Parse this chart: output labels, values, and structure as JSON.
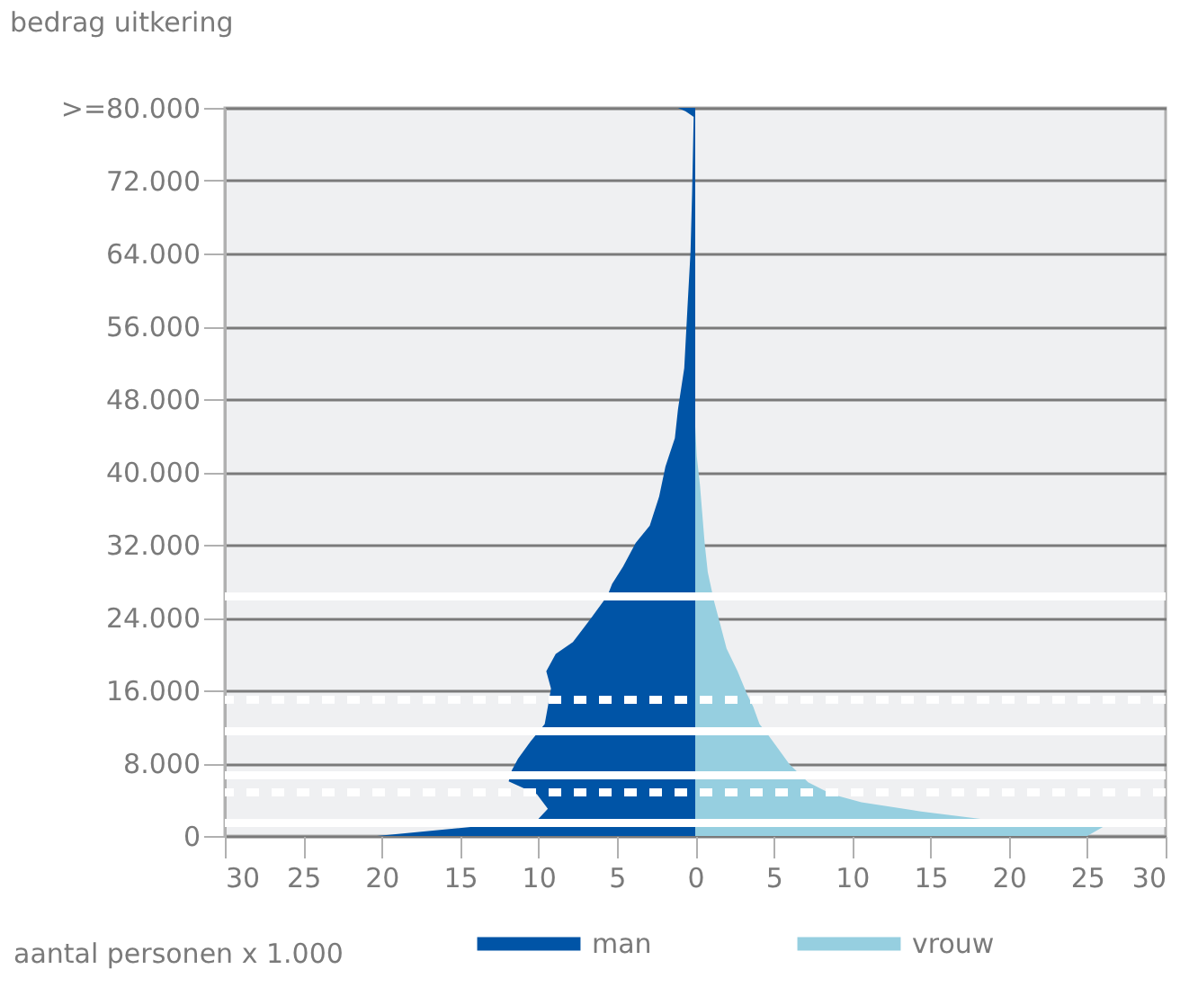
{
  "chart_data": {
    "type": "area",
    "orientation": "horizontal",
    "ylabel": "bedrag uitkering",
    "xlabel": "aantal personen x 1.000",
    "xlim": [
      -30,
      30
    ],
    "xticks": [
      {
        "value": -30,
        "label": "30"
      },
      {
        "value": -25,
        "label": "25"
      },
      {
        "value": -20,
        "label": "20"
      },
      {
        "value": -15,
        "label": "15"
      },
      {
        "value": -10,
        "label": "10"
      },
      {
        "value": -5,
        "label": "5"
      },
      0,
      5,
      10,
      15,
      20,
      25,
      30
    ],
    "ylim": [
      0,
      80000
    ],
    "yticks": [
      0,
      {
        "value": 8000,
        "label": "8.000"
      },
      {
        "value": 16000,
        "label": "16.000"
      },
      {
        "value": 24000,
        "label": "24.000"
      },
      {
        "value": 32000,
        "label": "32.000"
      },
      {
        "value": 40000,
        "label": "40.000"
      },
      {
        "value": 48000,
        "label": "48.000"
      },
      {
        "value": 56000,
        "label": "56.000"
      },
      {
        "value": 64000,
        "label": "64.000"
      },
      {
        "value": 72000,
        "label": "72.000"
      },
      {
        "value": 80000,
        "label": ">=80.000"
      }
    ],
    "grid": "y",
    "legend": "bottom",
    "series": [
      {
        "name": "man",
        "color": "#0054a6",
        "x": [
          0,
          1700,
          3000,
          4600,
          6000,
          7200,
          8500,
          10400,
          12300,
          14200,
          16200,
          18100,
          20000,
          21300,
          23800,
          26400,
          27700,
          29600,
          32200,
          34100,
          37300,
          40600,
          43700,
          46900,
          51400,
          57900,
          64200,
          70600,
          79000,
          79600,
          80000
        ],
        "values": [
          -20.3,
          -10.1,
          -9.4,
          -10.1,
          -11.9,
          -11.7,
          -11.3,
          -10.5,
          -9.6,
          -9.4,
          -9.2,
          -9.5,
          -8.9,
          -7.8,
          -6.7,
          -5.6,
          -5.3,
          -4.6,
          -3.8,
          -2.9,
          -2.3,
          -1.9,
          -1.3,
          -1.1,
          -0.7,
          -0.5,
          -0.3,
          -0.2,
          -0.1,
          -0.6,
          -1.1
        ]
      },
      {
        "name": "vrouw",
        "color": "#96cfe0",
        "x": [
          0,
          1000,
          1700,
          2700,
          3700,
          4600,
          5900,
          7900,
          9800,
          11000,
          12300,
          14200,
          15600,
          18100,
          20600,
          23200,
          25800,
          29000,
          32200,
          38600,
          41700,
          45000
        ],
        "values": [
          25,
          26,
          19,
          14.4,
          10.6,
          8.7,
          7.2,
          6.0,
          5.2,
          4.7,
          4.1,
          3.7,
          3.3,
          2.7,
          2.0,
          1.6,
          1.2,
          0.8,
          0.6,
          0.3,
          0.1,
          0
        ]
      }
    ],
    "ref_lines": [
      {
        "axis": "y",
        "value": 26300,
        "color": "#ffffff",
        "line_style": "solid"
      },
      {
        "axis": "y",
        "value": 15000,
        "color": "#ffffff",
        "line_style": "dashed"
      },
      {
        "axis": "y",
        "value": 6700,
        "color": "#ffffff",
        "line_style": "solid"
      },
      {
        "axis": "y",
        "value": 11500,
        "color": "#ffffff",
        "line_style": "solid"
      },
      {
        "axis": "y",
        "value": 4800,
        "color": "#ffffff",
        "line_style": "dashed"
      },
      {
        "axis": "y",
        "value": 1400,
        "color": "#ffffff",
        "line_style": "solid"
      }
    ]
  }
}
